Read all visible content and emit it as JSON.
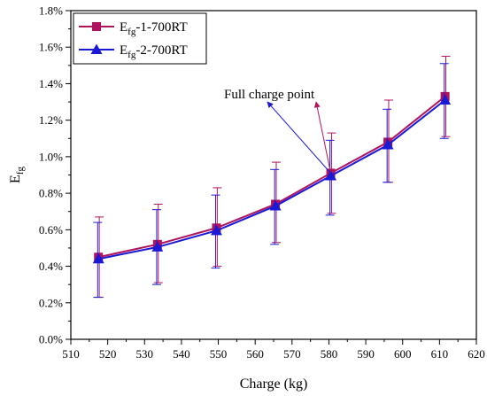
{
  "chart_data": {
    "type": "line",
    "xlabel": "Charge (kg)",
    "ylabel": {
      "main": "E",
      "sub": "fg"
    },
    "xlim": [
      510,
      620
    ],
    "ylim": [
      0,
      1.8
    ],
    "x_ticks": [
      510,
      520,
      530,
      540,
      550,
      560,
      570,
      580,
      590,
      600,
      610,
      620
    ],
    "x_tick_labels": [
      "510",
      "520",
      "530",
      "540",
      "550",
      "560",
      "570",
      "580",
      "590",
      "600",
      "610",
      "620"
    ],
    "y_ticks": [
      0,
      0.2,
      0.4,
      0.6,
      0.8,
      1.0,
      1.2,
      1.4,
      1.6,
      1.8
    ],
    "y_tick_labels": [
      "0.0%",
      "0.2%",
      "0.4%",
      "0.6%",
      "0.8%",
      "1.0%",
      "1.2%",
      "1.4%",
      "1.6%",
      "1.8%"
    ],
    "y_unit": "%",
    "grid": false,
    "legend_position": "top-left",
    "series": [
      {
        "label_main": "E",
        "label_sub": "fg",
        "label_rest": "-1-700RT",
        "color": "#b0135d",
        "marker": "square",
        "x": [
          517.5,
          533.5,
          549.5,
          565.5,
          580.5,
          596,
          611.5
        ],
        "y": [
          0.45,
          0.52,
          0.61,
          0.74,
          0.91,
          1.08,
          1.33
        ],
        "err_low": [
          0.23,
          0.31,
          0.4,
          0.53,
          0.69,
          0.86,
          1.11
        ],
        "err_high": [
          0.67,
          0.74,
          0.83,
          0.97,
          1.13,
          1.31,
          1.55
        ]
      },
      {
        "label_main": "E",
        "label_sub": "fg",
        "label_rest": "-2-700RT",
        "color": "#1a1ad6",
        "marker": "triangle",
        "x": [
          517.5,
          533.5,
          549.5,
          565.5,
          580.5,
          596,
          611.5
        ],
        "y": [
          0.44,
          0.505,
          0.595,
          0.73,
          0.895,
          1.065,
          1.31
        ],
        "err_low": [
          0.23,
          0.3,
          0.39,
          0.52,
          0.68,
          0.86,
          1.1
        ],
        "err_high": [
          0.64,
          0.71,
          0.79,
          0.93,
          1.09,
          1.26,
          1.51
        ]
      }
    ],
    "annotation": {
      "text": "Full charge point",
      "point_x": 580.5,
      "point_y": 0.9
    }
  }
}
